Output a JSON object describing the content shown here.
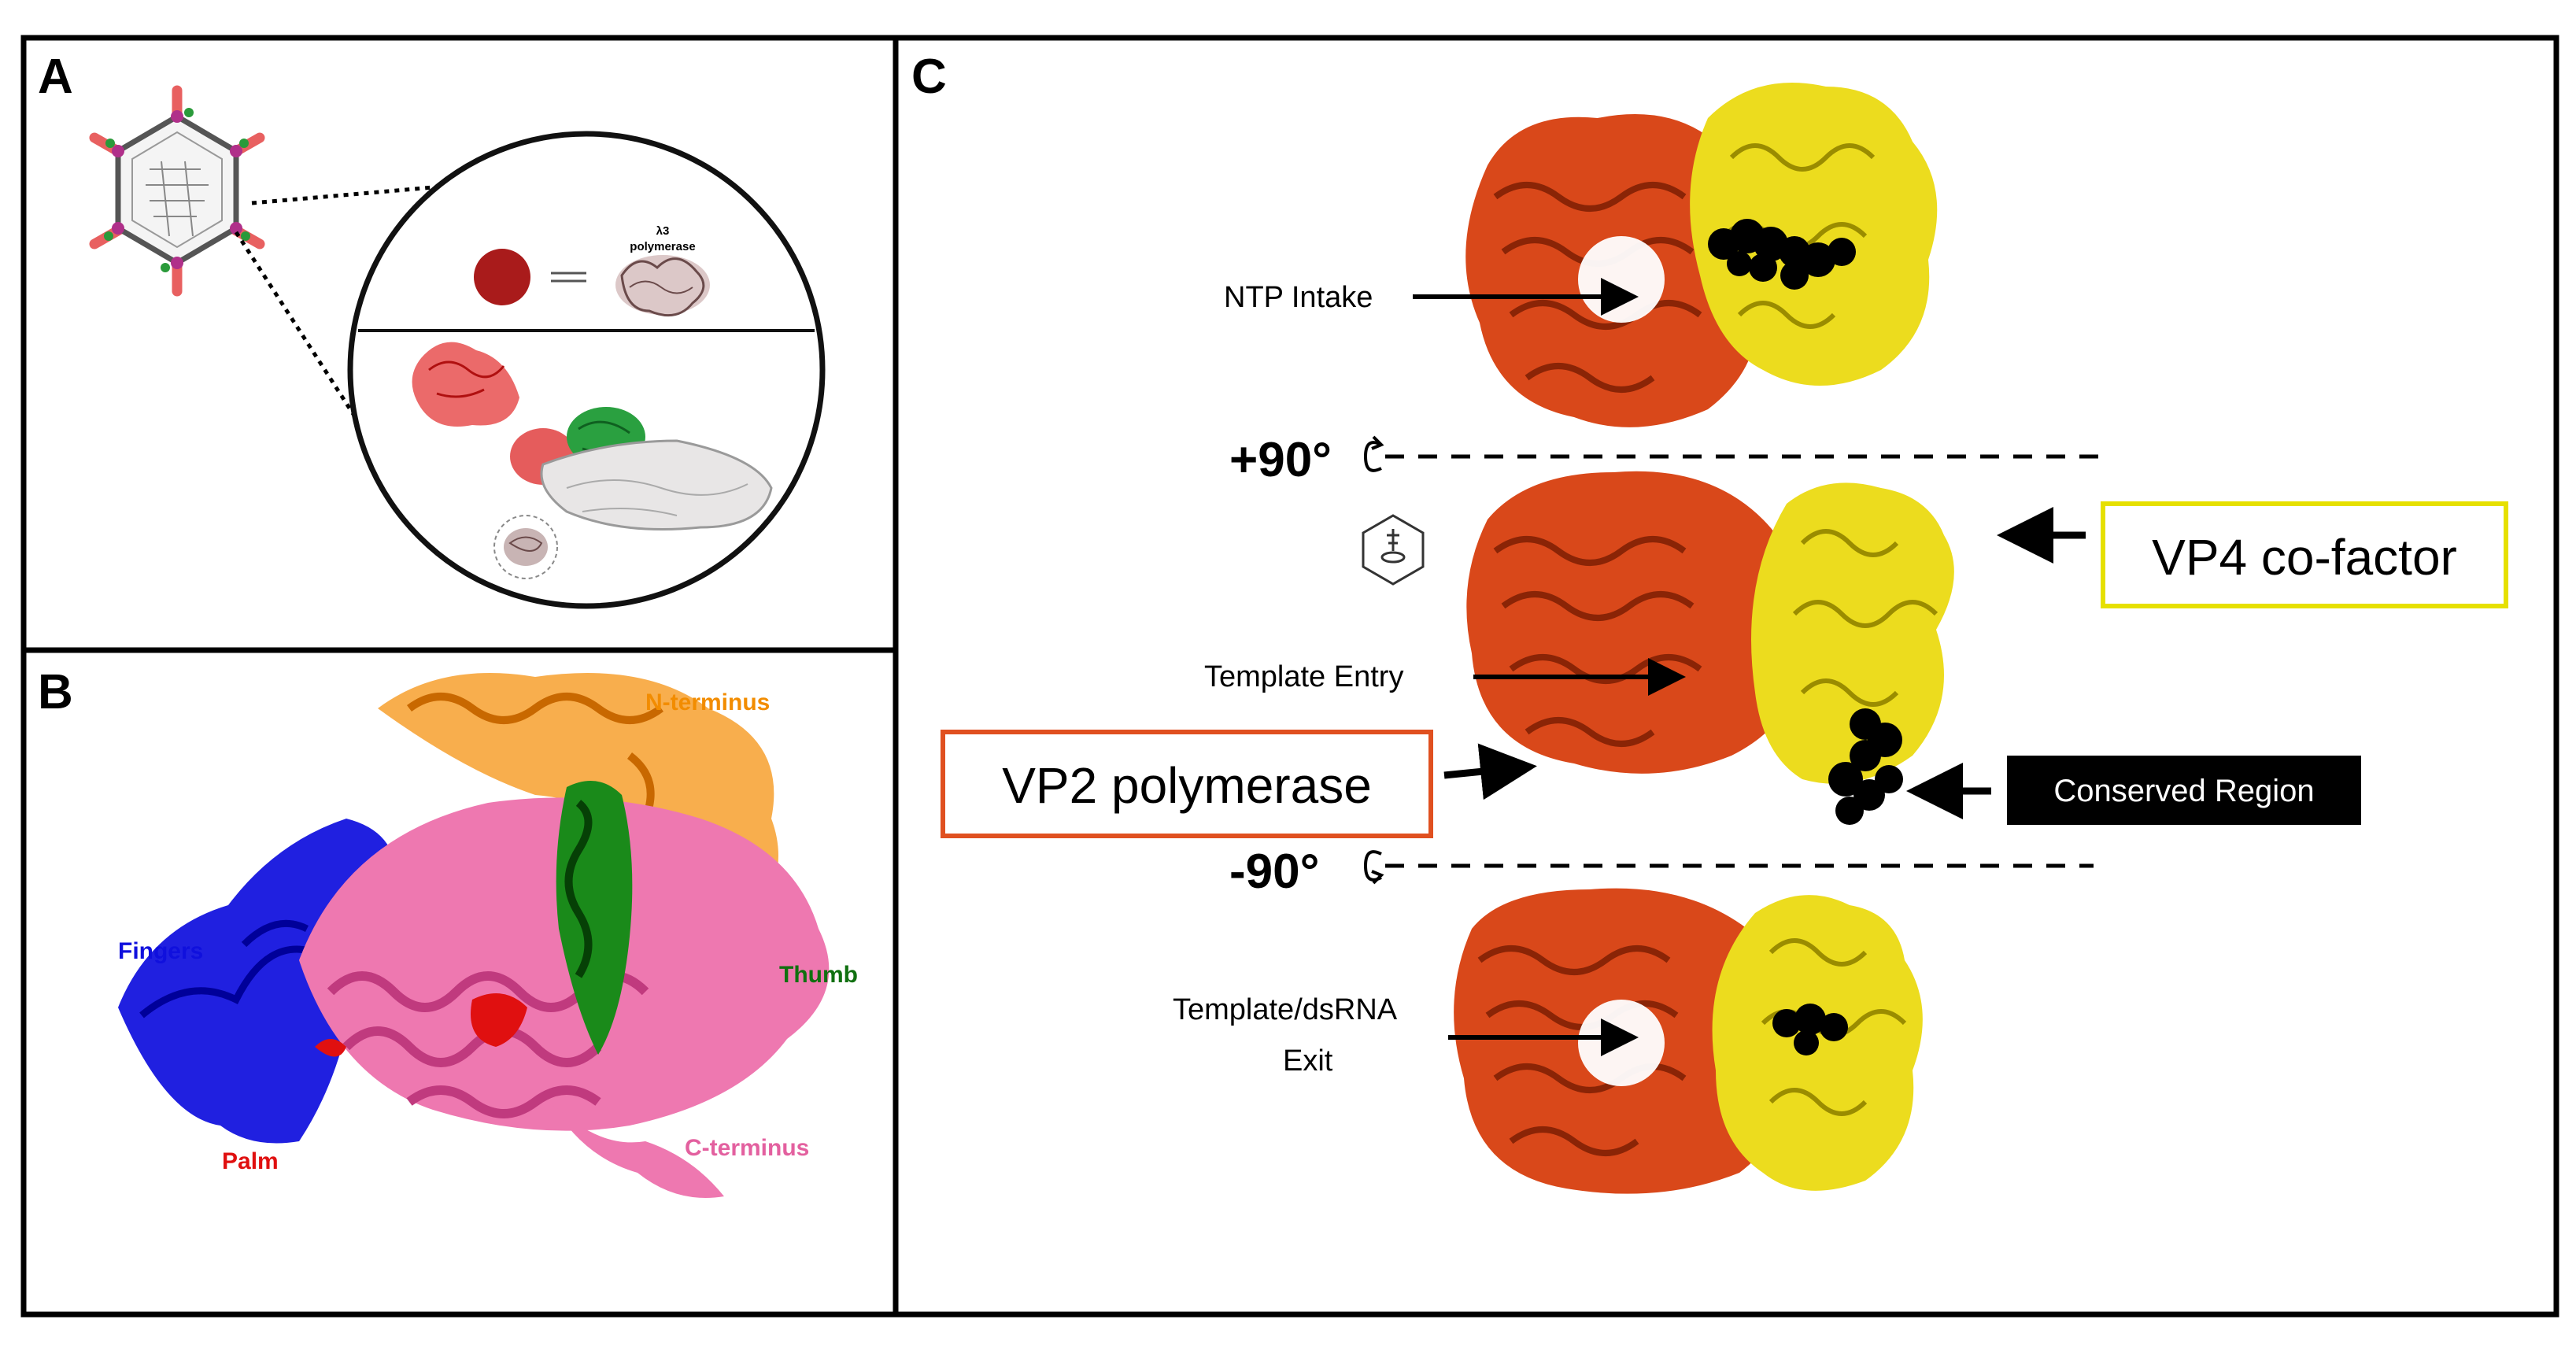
{
  "panels": {
    "a": {
      "letter": "A",
      "label": "λ3\npolymerase",
      "label_line1": "λ3",
      "label_line2": "polymerase"
    },
    "b": {
      "letter": "B",
      "domains": [
        {
          "name": "N-terminus",
          "color": "#f28c00"
        },
        {
          "name": "Fingers",
          "color": "#1010dd"
        },
        {
          "name": "Thumb",
          "color": "#107010"
        },
        {
          "name": "Palm",
          "color": "#e01010"
        },
        {
          "name": "C-terminus",
          "color": "#e3609f"
        }
      ]
    },
    "c": {
      "letter": "C",
      "rot_plus": "+90°",
      "rot_minus": "-90°",
      "ntp_intake": "NTP Intake",
      "template_entry": "Template Entry",
      "exit_line1": "Template/dsRNA",
      "exit_line2": "Exit",
      "vp4": "VP4 co-factor",
      "vp2": "VP2 polymerase",
      "conserved": "Conserved Region"
    }
  },
  "colors": {
    "vp2": "#d9481a",
    "vp4": "#e8d800",
    "conserved_fill": "#000000",
    "red_sphere": "#a91b1b"
  }
}
